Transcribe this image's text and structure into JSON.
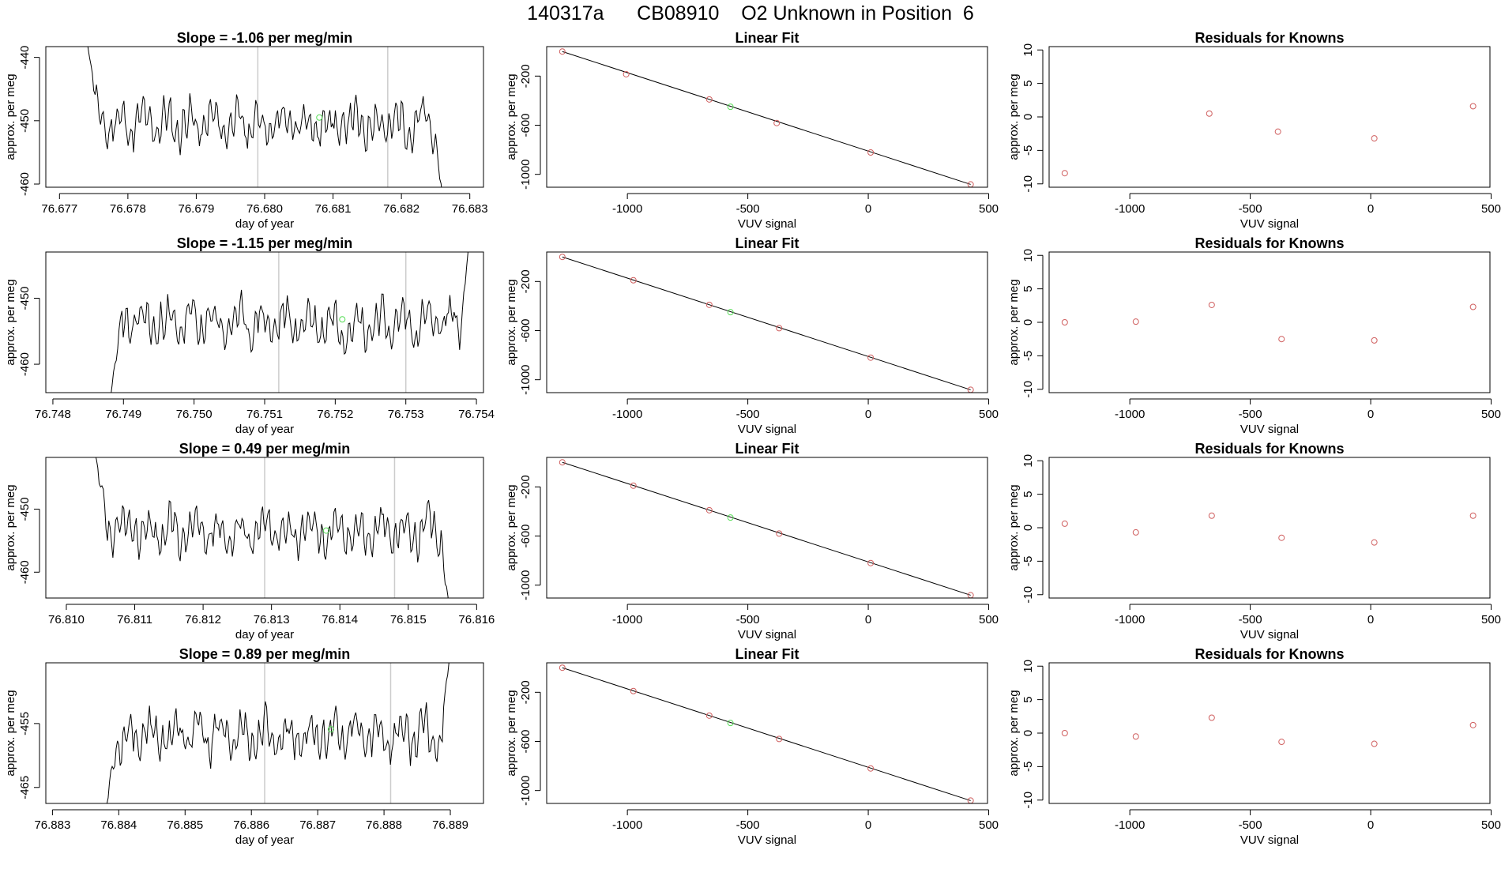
{
  "header": {
    "title": "140317a      CB08910    O2 Unknown in Position  6"
  },
  "colors": {
    "known_point": "#d06060",
    "unknown_point": "#55dd55",
    "vertical_marker": "#cccccc",
    "line": "#000000"
  },
  "chart_data": [
    {
      "type": "line",
      "row": 1,
      "panel": "time-series",
      "title": "Slope =  -1.06  per meg/min",
      "xlabel": "day of year",
      "ylabel": "approx. per meg",
      "xlim": [
        76.6768,
        76.6832
      ],
      "ylim": [
        -460.5,
        -438.3
      ],
      "xticks": [
        "76.677",
        "76.678",
        "76.679",
        "76.680",
        "76.681",
        "76.682",
        "76.683"
      ],
      "yticks": [
        "-440",
        "-450",
        "-460"
      ],
      "vlines": [
        76.6799,
        76.6818
      ],
      "unknown_point": {
        "x": 76.6808,
        "y": -449.5
      },
      "series": [
        {
          "x0": 76.6774,
          "x1": 76.6826,
          "n": 260,
          "mean": -450.5,
          "amp": 3.4,
          "seed": 11,
          "start_y": -437.0,
          "end_y": -462.0
        }
      ]
    },
    {
      "type": "line",
      "row": 2,
      "panel": "time-series",
      "title": "Slope =  -1.15  per meg/min",
      "xlabel": "day of year",
      "ylabel": "approx. per meg",
      "xlim": [
        76.7479,
        76.7541
      ],
      "ylim": [
        -464.3,
        -443.0
      ],
      "xticks": [
        "76.748",
        "76.749",
        "76.750",
        "76.751",
        "76.752",
        "76.753",
        "76.754"
      ],
      "yticks": [
        "-450",
        "-460"
      ],
      "vlines": [
        76.7512,
        76.753
      ],
      "unknown_point": {
        "x": 76.7521,
        "y": -453.2
      },
      "series": [
        {
          "x0": 76.7488,
          "x1": 76.7539,
          "n": 260,
          "mean": -453.8,
          "amp": 3.4,
          "seed": 23,
          "start_y": -466.0,
          "end_y": -441.0
        }
      ]
    },
    {
      "type": "line",
      "row": 3,
      "panel": "time-series",
      "title": "Slope =  0.49  per meg/min",
      "xlabel": "day of year",
      "ylabel": "approx. per meg",
      "xlim": [
        76.8097,
        76.8161
      ],
      "ylim": [
        -464.1,
        -441.8
      ],
      "xticks": [
        "76.810",
        "76.811",
        "76.812",
        "76.813",
        "76.814",
        "76.815",
        "76.816"
      ],
      "yticks": [
        "-450",
        "-460"
      ],
      "vlines": [
        76.8129,
        76.8148
      ],
      "unknown_point": {
        "x": 76.8138,
        "y": -453.4
      },
      "series": [
        {
          "x0": 76.8104,
          "x1": 76.8156,
          "n": 260,
          "mean": -453.5,
          "amp": 3.4,
          "seed": 37,
          "start_y": -440.0,
          "end_y": -466.0
        }
      ]
    },
    {
      "type": "line",
      "row": 4,
      "panel": "time-series",
      "title": "Slope =  0.89  per meg/min",
      "xlabel": "day of year",
      "ylabel": "approx. per meg",
      "xlim": [
        76.8829,
        76.8895
      ],
      "ylim": [
        -467.5,
        -445.5
      ],
      "xticks": [
        "76.883",
        "76.884",
        "76.885",
        "76.886",
        "76.887",
        "76.888",
        "76.889"
      ],
      "yticks": [
        "-455",
        "-465"
      ],
      "vlines": [
        76.8862,
        76.8881
      ],
      "unknown_point": {
        "x": 76.8872,
        "y": -455.9
      },
      "series": [
        {
          "x0": 76.8838,
          "x1": 76.889,
          "n": 260,
          "mean": -456.8,
          "amp": 3.4,
          "seed": 53,
          "start_y": -469.0,
          "end_y": -443.0
        }
      ]
    },
    {
      "type": "scatter",
      "row": 1,
      "panel": "linear-fit",
      "title": "Linear Fit",
      "xlabel": "VUV signal",
      "ylabel": "approx. per meg",
      "xlim": [
        -1335,
        495
      ],
      "ylim": [
        -1105,
        40
      ],
      "xticks": [
        -1000,
        -500,
        0,
        500
      ],
      "yticks": [
        -200,
        -600,
        -1000
      ],
      "knowns": [
        {
          "x": -1270,
          "y": 0
        },
        {
          "x": -1005,
          "y": -185
        },
        {
          "x": -660,
          "y": -390
        },
        {
          "x": -380,
          "y": -582
        },
        {
          "x": 10,
          "y": -822
        },
        {
          "x": 425,
          "y": -1082
        }
      ],
      "unknown": {
        "x": -572,
        "y": -450
      },
      "fit_line": [
        [
          -1270,
          0
        ],
        [
          425,
          -1082
        ]
      ]
    },
    {
      "type": "scatter",
      "row": 2,
      "panel": "linear-fit",
      "title": "Linear Fit",
      "xlabel": "VUV signal",
      "ylabel": "approx. per meg",
      "xlim": [
        -1335,
        495
      ],
      "ylim": [
        -1105,
        40
      ],
      "xticks": [
        -1000,
        -500,
        0,
        500
      ],
      "yticks": [
        -200,
        -600,
        -1000
      ],
      "knowns": [
        {
          "x": -1270,
          "y": 0
        },
        {
          "x": -975,
          "y": -190
        },
        {
          "x": -660,
          "y": -390
        },
        {
          "x": -370,
          "y": -580
        },
        {
          "x": 10,
          "y": -820
        },
        {
          "x": 425,
          "y": -1082
        }
      ],
      "unknown": {
        "x": -572,
        "y": -450
      },
      "fit_line": [
        [
          -1270,
          0
        ],
        [
          425,
          -1082
        ]
      ]
    },
    {
      "type": "scatter",
      "row": 3,
      "panel": "linear-fit",
      "title": "Linear Fit",
      "xlabel": "VUV signal",
      "ylabel": "approx. per meg",
      "xlim": [
        -1335,
        495
      ],
      "ylim": [
        -1105,
        40
      ],
      "xticks": [
        -1000,
        -500,
        0,
        500
      ],
      "yticks": [
        -200,
        -600,
        -1000
      ],
      "knowns": [
        {
          "x": -1270,
          "y": 0
        },
        {
          "x": -975,
          "y": -190
        },
        {
          "x": -660,
          "y": -390
        },
        {
          "x": -370,
          "y": -580
        },
        {
          "x": 10,
          "y": -820
        },
        {
          "x": 425,
          "y": -1082
        }
      ],
      "unknown": {
        "x": -572,
        "y": -450
      },
      "fit_line": [
        [
          -1270,
          0
        ],
        [
          425,
          -1082
        ]
      ]
    },
    {
      "type": "scatter",
      "row": 4,
      "panel": "linear-fit",
      "title": "Linear Fit",
      "xlabel": "VUV signal",
      "ylabel": "approx. per meg",
      "xlim": [
        -1335,
        495
      ],
      "ylim": [
        -1105,
        40
      ],
      "xticks": [
        -1000,
        -500,
        0,
        500
      ],
      "yticks": [
        -200,
        -600,
        -1000
      ],
      "knowns": [
        {
          "x": -1270,
          "y": 0
        },
        {
          "x": -975,
          "y": -190
        },
        {
          "x": -660,
          "y": -390
        },
        {
          "x": -370,
          "y": -580
        },
        {
          "x": 10,
          "y": -820
        },
        {
          "x": 425,
          "y": -1082
        }
      ],
      "unknown": {
        "x": -572,
        "y": -450
      },
      "fit_line": [
        [
          -1270,
          0
        ],
        [
          425,
          -1082
        ]
      ]
    },
    {
      "type": "scatter",
      "row": 1,
      "panel": "residuals",
      "title": "Residuals for Knowns",
      "xlabel": "VUV signal",
      "ylabel": "approx. per meg",
      "xlim": [
        -1335,
        495
      ],
      "ylim": [
        -10.5,
        10.5
      ],
      "xticks": [
        -1000,
        -500,
        0,
        500
      ],
      "yticks": [
        10,
        5,
        0,
        -5,
        -10
      ],
      "points": [
        {
          "x": -1270,
          "y": -8.4
        },
        {
          "x": -670,
          "y": 0.5
        },
        {
          "x": -385,
          "y": -2.2
        },
        {
          "x": 15,
          "y": -3.2
        },
        {
          "x": 425,
          "y": 1.6
        }
      ]
    },
    {
      "type": "scatter",
      "row": 2,
      "panel": "residuals",
      "title": "Residuals for Knowns",
      "xlabel": "VUV signal",
      "ylabel": "approx. per meg",
      "xlim": [
        -1335,
        495
      ],
      "ylim": [
        -10.5,
        10.5
      ],
      "xticks": [
        -1000,
        -500,
        0,
        500
      ],
      "yticks": [
        10,
        5,
        0,
        -5,
        -10
      ],
      "points": [
        {
          "x": -1270,
          "y": 0.0
        },
        {
          "x": -975,
          "y": 0.1
        },
        {
          "x": -660,
          "y": 2.6
        },
        {
          "x": -370,
          "y": -2.5
        },
        {
          "x": 15,
          "y": -2.7
        },
        {
          "x": 425,
          "y": 2.3
        }
      ]
    },
    {
      "type": "scatter",
      "row": 3,
      "panel": "residuals",
      "title": "Residuals for Knowns",
      "xlabel": "VUV signal",
      "ylabel": "approx. per meg",
      "xlim": [
        -1335,
        495
      ],
      "ylim": [
        -10.5,
        10.5
      ],
      "xticks": [
        -1000,
        -500,
        0,
        500
      ],
      "yticks": [
        10,
        5,
        0,
        -5,
        -10
      ],
      "points": [
        {
          "x": -1270,
          "y": 0.6
        },
        {
          "x": -975,
          "y": -0.7
        },
        {
          "x": -660,
          "y": 1.8
        },
        {
          "x": -370,
          "y": -1.5
        },
        {
          "x": 15,
          "y": -2.2
        },
        {
          "x": 425,
          "y": 1.8
        }
      ]
    },
    {
      "type": "scatter",
      "row": 4,
      "panel": "residuals",
      "title": "Residuals for Knowns",
      "xlabel": "VUV signal",
      "ylabel": "approx. per meg",
      "xlim": [
        -1335,
        495
      ],
      "ylim": [
        -10.5,
        10.5
      ],
      "xticks": [
        -1000,
        -500,
        0,
        500
      ],
      "yticks": [
        10,
        5,
        0,
        -5,
        -10
      ],
      "points": [
        {
          "x": -1270,
          "y": 0.0
        },
        {
          "x": -975,
          "y": -0.5
        },
        {
          "x": -660,
          "y": 2.3
        },
        {
          "x": -370,
          "y": -1.3
        },
        {
          "x": 15,
          "y": -1.6
        },
        {
          "x": 425,
          "y": 1.2
        }
      ]
    }
  ]
}
